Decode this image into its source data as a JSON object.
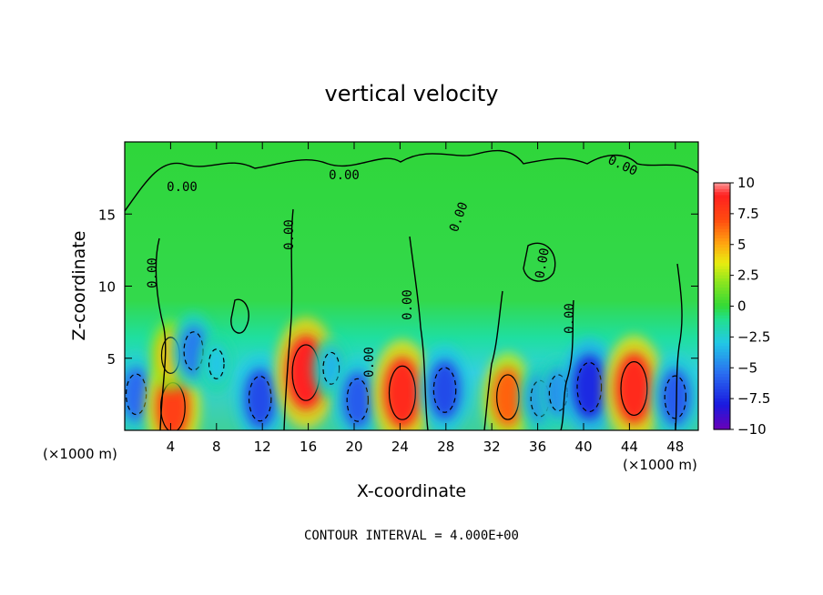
{
  "chart_data": {
    "type": "heatmap",
    "title": "vertical velocity",
    "xlabel": "X-coordinate",
    "ylabel": "Z-coordinate",
    "x_unit": "(×1000 m)",
    "x_unit_right": "(×1000 m)",
    "xlim": [
      0,
      50
    ],
    "ylim": [
      0,
      20
    ],
    "x_ticks": [
      4,
      8,
      12,
      16,
      20,
      24,
      28,
      32,
      36,
      40,
      44,
      48
    ],
    "x_tick_labels": [
      "4",
      "8",
      "12",
      "16",
      "20",
      "24",
      "28",
      "32",
      "36",
      "40",
      "44",
      "48"
    ],
    "y_ticks": [
      5,
      10,
      15
    ],
    "y_tick_labels": [
      "5",
      "10",
      "15"
    ],
    "colorbar": {
      "labels": [
        "10",
        "7.5",
        "5",
        "2.5",
        "0",
        "−2.5",
        "−5",
        "−7.5",
        "−10"
      ],
      "range": [
        -10,
        10
      ]
    },
    "contour_labels": [
      "0.00",
      "0.00",
      "0.00",
      "0.00",
      "0.00",
      "0.00",
      "0.00",
      "0.00",
      "0.00",
      "0.00"
    ],
    "note": "CONTOUR INTERVAL = 4.000E+00",
    "cells": [
      {
        "x": 1.0,
        "z": 2.5,
        "w": -5.5
      },
      {
        "x": 4.2,
        "z": 1.6,
        "w": 7.5
      },
      {
        "x": 4.0,
        "z": 5.2,
        "w": 4.5
      },
      {
        "x": 6.0,
        "z": 5.5,
        "w": -5
      },
      {
        "x": 8.0,
        "z": 4.6,
        "w": -3
      },
      {
        "x": 11.8,
        "z": 2.2,
        "w": -6.5
      },
      {
        "x": 15.8,
        "z": 4.0,
        "w": 9
      },
      {
        "x": 18.0,
        "z": 4.3,
        "w": -3.5
      },
      {
        "x": 20.3,
        "z": 2.1,
        "w": -6
      },
      {
        "x": 24.2,
        "z": 2.6,
        "w": 8.5
      },
      {
        "x": 27.9,
        "z": 2.8,
        "w": -6.5
      },
      {
        "x": 33.4,
        "z": 2.3,
        "w": 6.5
      },
      {
        "x": 36.2,
        "z": 2.2,
        "w": -4.5
      },
      {
        "x": 37.8,
        "z": 2.6,
        "w": -4.5
      },
      {
        "x": 40.5,
        "z": 3.0,
        "w": -7.5
      },
      {
        "x": 44.4,
        "z": 2.9,
        "w": 8.5
      },
      {
        "x": 48.0,
        "z": 2.3,
        "w": -6
      }
    ]
  }
}
